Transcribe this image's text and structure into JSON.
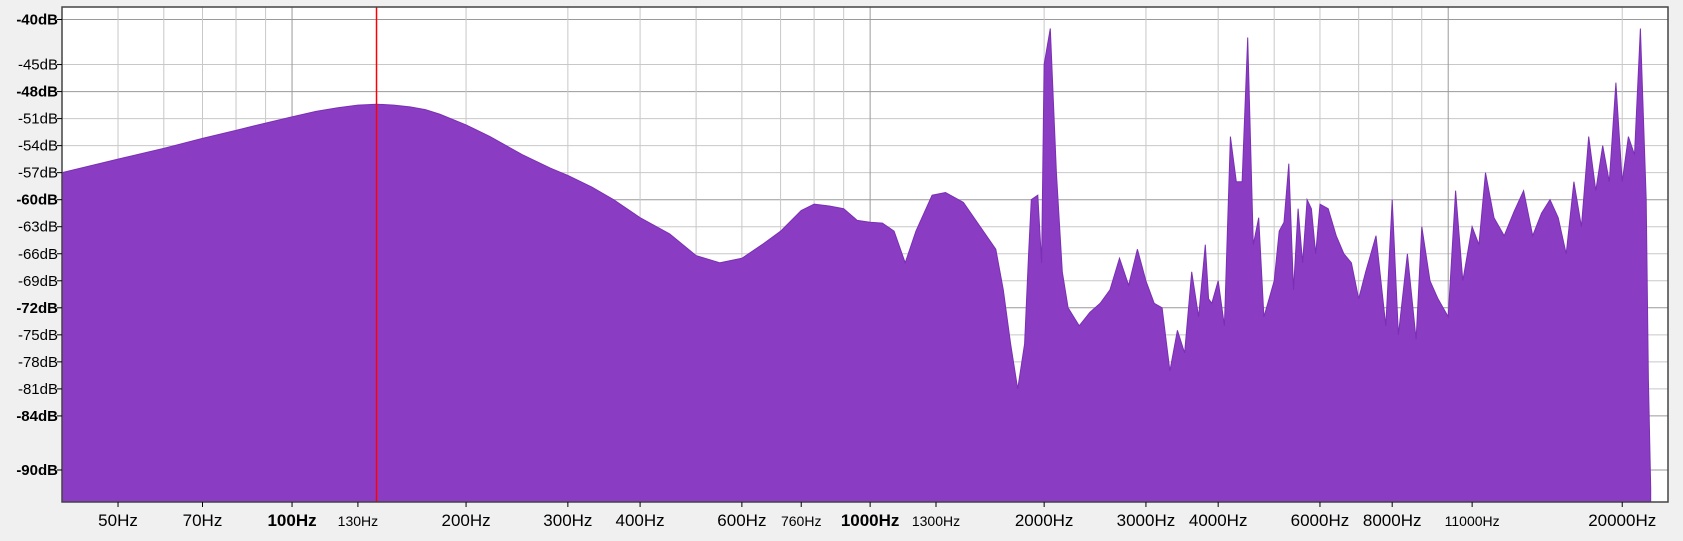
{
  "chart_data": {
    "type": "area",
    "title": "",
    "xlabel": "",
    "ylabel": "",
    "x_scale": "log",
    "xlim": [
      40,
      24000
    ],
    "ylim": [
      -92,
      -40
    ],
    "grid": true,
    "fill_color": "#8a3cc2",
    "cursor_color": "#ff0000",
    "cursor_x": 140,
    "y_ticks": [
      {
        "label": "-40dB",
        "value": -40,
        "major": true
      },
      {
        "label": "-45dB",
        "value": -45,
        "major": false
      },
      {
        "label": "-48dB",
        "value": -48,
        "major": true
      },
      {
        "label": "-51dB",
        "value": -51,
        "major": false
      },
      {
        "label": "-54dB",
        "value": -54,
        "major": false
      },
      {
        "label": "-57dB",
        "value": -57,
        "major": false
      },
      {
        "label": "-60dB",
        "value": -60,
        "major": true
      },
      {
        "label": "-63dB",
        "value": -63,
        "major": false
      },
      {
        "label": "-66dB",
        "value": -66,
        "major": false
      },
      {
        "label": "-69dB",
        "value": -69,
        "major": false
      },
      {
        "label": "-72dB",
        "value": -72,
        "major": true
      },
      {
        "label": "-75dB",
        "value": -75,
        "major": false
      },
      {
        "label": "-78dB",
        "value": -78,
        "major": false
      },
      {
        "label": "-81dB",
        "value": -81,
        "major": false
      },
      {
        "label": "-84dB",
        "value": -84,
        "major": true
      },
      {
        "label": "-90dB",
        "value": -90,
        "major": true
      }
    ],
    "x_ticks": [
      {
        "label": "50Hz",
        "value": 50,
        "style": "normal"
      },
      {
        "label": "70Hz",
        "value": 70,
        "style": "normal"
      },
      {
        "label": "100Hz",
        "value": 100,
        "style": "major"
      },
      {
        "label": "130Hz",
        "value": 130,
        "style": "small"
      },
      {
        "label": "200Hz",
        "value": 200,
        "style": "normal"
      },
      {
        "label": "300Hz",
        "value": 300,
        "style": "normal"
      },
      {
        "label": "400Hz",
        "value": 400,
        "style": "normal"
      },
      {
        "label": "600Hz",
        "value": 600,
        "style": "normal"
      },
      {
        "label": "760Hz",
        "value": 760,
        "style": "small"
      },
      {
        "label": "1000Hz",
        "value": 1000,
        "style": "major"
      },
      {
        "label": "1300Hz",
        "value": 1300,
        "style": "small"
      },
      {
        "label": "2000Hz",
        "value": 2000,
        "style": "normal"
      },
      {
        "label": "3000Hz",
        "value": 3000,
        "style": "normal"
      },
      {
        "label": "4000Hz",
        "value": 4000,
        "style": "normal"
      },
      {
        "label": "6000Hz",
        "value": 6000,
        "style": "normal"
      },
      {
        "label": "8000Hz",
        "value": 8000,
        "style": "normal"
      },
      {
        "label": "11000Hz",
        "value": 11000,
        "style": "small"
      },
      {
        "label": "20000Hz",
        "value": 20000,
        "style": "normal"
      }
    ],
    "grid_x": [
      50,
      60,
      70,
      80,
      90,
      100,
      200,
      300,
      400,
      500,
      600,
      700,
      800,
      900,
      1000,
      2000,
      3000,
      4000,
      5000,
      6000,
      7000,
      8000,
      9000,
      10000,
      20000
    ],
    "series": [
      {
        "x": [
          40,
          50,
          60,
          70,
          80,
          90,
          100,
          110,
          120,
          130,
          140,
          150,
          160,
          170,
          180,
          200,
          220,
          250,
          280,
          300,
          330,
          360,
          400,
          450,
          500,
          550,
          600,
          650,
          700,
          760,
          800,
          850,
          900,
          950,
          1000,
          1050,
          1100,
          1150,
          1200,
          1280,
          1350,
          1450,
          1550,
          1650,
          1700,
          1750,
          1800,
          1850,
          1880,
          1900,
          1950,
          1980,
          2000,
          2050,
          2100,
          2150,
          2200,
          2300,
          2400,
          2500,
          2600,
          2700,
          2750,
          2800,
          2900,
          3000,
          3100,
          3200,
          3300,
          3400,
          3500,
          3600,
          3700,
          3800,
          3850,
          3900,
          4000,
          4100,
          4200,
          4300,
          4400,
          4500,
          4600,
          4700,
          4800,
          4900,
          5000,
          5100,
          5200,
          5300,
          5400,
          5500,
          5600,
          5700,
          5800,
          5900,
          6000,
          6200,
          6400,
          6600,
          6800,
          7000,
          7200,
          7500,
          7800,
          8000,
          8200,
          8500,
          8800,
          9000,
          9300,
          9600,
          10000,
          10300,
          10600,
          11000,
          11300,
          11600,
          12000,
          12500,
          13000,
          13500,
          14000,
          14500,
          15000,
          15500,
          16000,
          16500,
          17000,
          17500,
          18000,
          18500,
          19000,
          19500,
          20000,
          20500,
          21000,
          21500,
          22000,
          22200,
          22400
        ],
        "y": [
          -57,
          -55.5,
          -54.3,
          -53.2,
          -52.3,
          -51.5,
          -50.8,
          -50.2,
          -49.8,
          -49.5,
          -49.4,
          -49.5,
          -49.7,
          -50,
          -50.5,
          -51.7,
          -53,
          -55,
          -56.5,
          -57.3,
          -58.6,
          -60,
          -62,
          -63.8,
          -66.2,
          -67,
          -66.5,
          -65,
          -63.5,
          -61.2,
          -60.5,
          -60.7,
          -61,
          -62.3,
          -62.5,
          -62.6,
          -63.5,
          -67,
          -63.5,
          -59.5,
          -59.2,
          -60.3,
          -63,
          -65.5,
          -70,
          -76,
          -81,
          -76,
          -66,
          -60,
          -59.5,
          -67,
          -45,
          -41,
          -57,
          -68,
          -72,
          -74,
          -72.5,
          -71.5,
          -70,
          -66.5,
          -68,
          -69.5,
          -65.5,
          -69,
          -71.5,
          -72,
          -79,
          -74.5,
          -77,
          -68,
          -73,
          -65,
          -71,
          -71.5,
          -69,
          -74,
          -53,
          -58,
          -58,
          -42,
          -65,
          -62,
          -73,
          -71,
          -69,
          -63.5,
          -62.5,
          -56,
          -70,
          -61,
          -67,
          -60,
          -61,
          -66,
          -60.5,
          -61,
          -64,
          -66,
          -67,
          -71,
          -68,
          -64,
          -74,
          -60,
          -75,
          -66,
          -75.5,
          -63,
          -69,
          -71,
          -73,
          -59,
          -69,
          -63,
          -65,
          -57,
          -62,
          -64,
          -61.3,
          -59,
          -64,
          -61.5,
          -60,
          -62,
          -66,
          -58,
          -63,
          -53,
          -59,
          -54,
          -58,
          -47,
          -58,
          -53,
          -55,
          -41,
          -60,
          -80,
          -92
        ]
      }
    ]
  }
}
